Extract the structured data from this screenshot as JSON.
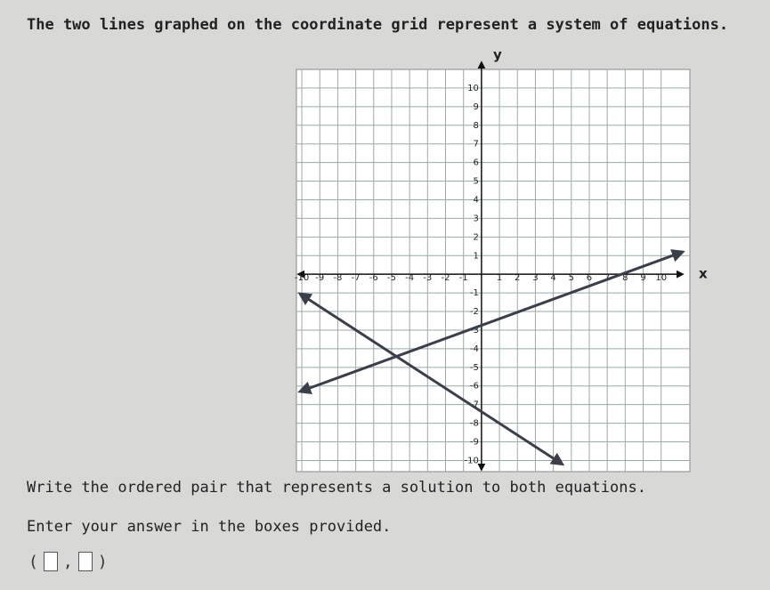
{
  "question": "The two lines graphed on the coordinate grid represent a system of equations.",
  "graph": {
    "x_label": "x",
    "y_label": "y",
    "xlim": [
      -10.3,
      11.6
    ],
    "ylim": [
      -10.6,
      11
    ],
    "xticks": [
      -10,
      -9,
      -8,
      -7,
      -6,
      -5,
      -4,
      -3,
      -2,
      -1,
      1,
      2,
      3,
      4,
      5,
      6,
      7,
      8,
      9,
      10
    ],
    "yticks": [
      -10,
      -9,
      -8,
      -7,
      -6,
      -5,
      -4,
      -3,
      -2,
      -1,
      1,
      2,
      3,
      4,
      5,
      6,
      7,
      8,
      9,
      10
    ],
    "lines": [
      {
        "color": "#3a3f4a",
        "x": [
          -10.1,
          11.2
        ],
        "y": [
          -6.3,
          1.2
        ]
      },
      {
        "color": "#3a3f4a",
        "x": [
          -10.1,
          4.5
        ],
        "y": [
          -1.05,
          -10.2
        ]
      }
    ]
  },
  "instruction": "Write the ordered pair that represents a solution to both equations.",
  "prompt": "Enter your answer in the boxes provided.",
  "answer": {
    "open": "(",
    "separator": ",",
    "close": ")"
  }
}
